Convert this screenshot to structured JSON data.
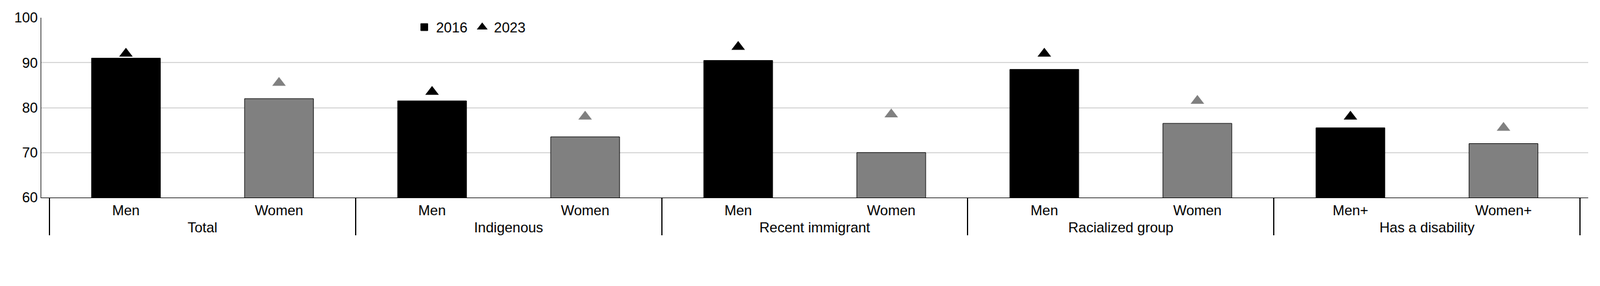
{
  "chart_data": {
    "type": "bar",
    "categories": [
      "Men",
      "Women",
      "Men",
      "Women",
      "Men",
      "Women",
      "Men",
      "Women",
      "Men+",
      "Women+"
    ],
    "category_groups": [
      "Total",
      "Total",
      "Indigenous",
      "Indigenous",
      "Recent immigrant",
      "Recent immigrant",
      "Racialized group",
      "Racialized group",
      "Has a disability",
      "Has a disability"
    ],
    "series": [
      {
        "name": "2016",
        "type": "bar",
        "colors": [
          "#000000",
          "#808080",
          "#000000",
          "#808080",
          "#000000",
          "#808080",
          "#000000",
          "#808080",
          "#000000",
          "#808080"
        ],
        "values": [
          91,
          82,
          81.5,
          73.5,
          90.5,
          70,
          88.5,
          76.5,
          75.5,
          72
        ]
      },
      {
        "name": "2023",
        "type": "scatter",
        "marker": "triangle-up",
        "colors": [
          "#000000",
          "#808080",
          "#000000",
          "#808080",
          "#000000",
          "#808080",
          "#000000",
          "#808080",
          "#000000",
          "#808080"
        ],
        "values": [
          92,
          85.5,
          83.5,
          78,
          93.5,
          78.5,
          92,
          81.5,
          78,
          75.5
        ]
      }
    ],
    "ylim": [
      60,
      100
    ],
    "yticks": [
      60,
      70,
      80,
      90,
      100
    ],
    "grid": true,
    "legend": "top"
  }
}
